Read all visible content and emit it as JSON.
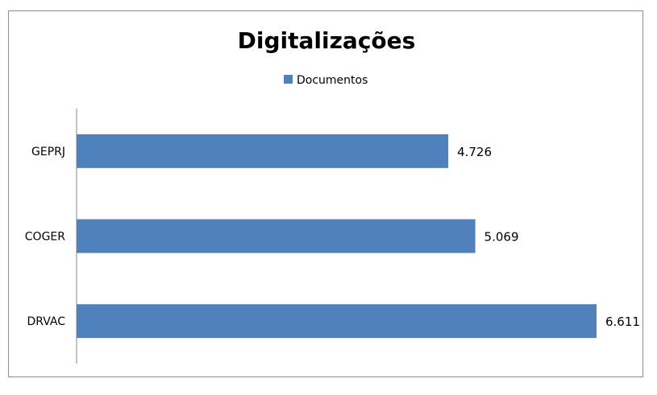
{
  "chart_data": {
    "type": "bar",
    "orientation": "horizontal",
    "title": "Digitalizações",
    "categories": [
      "GEPRJ",
      "COGER",
      "DRVAC"
    ],
    "series": [
      {
        "name": "Documentos",
        "values": [
          4726,
          5069,
          6611
        ],
        "color": "#4F81BD"
      }
    ],
    "data_labels": [
      "4.726",
      "5.069",
      "6.611"
    ],
    "xlim": [
      0,
      7000
    ],
    "grid": false,
    "legend_position": "top"
  }
}
